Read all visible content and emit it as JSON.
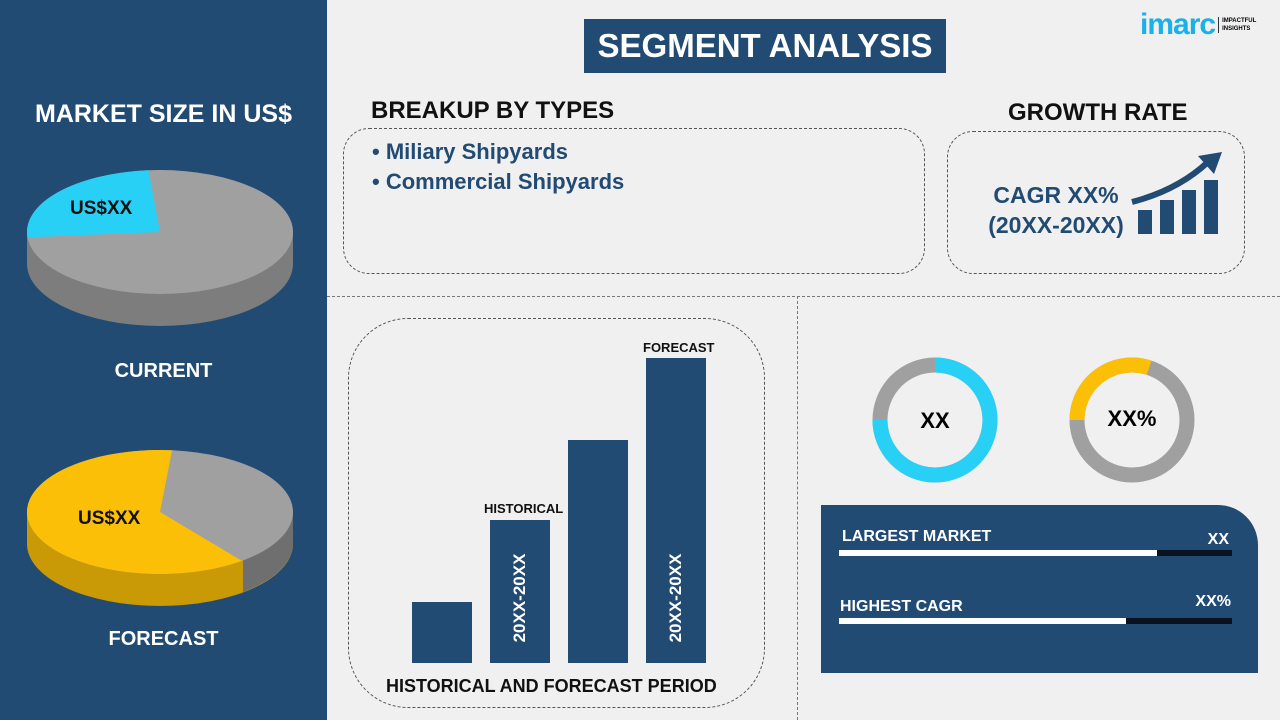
{
  "title": "SEGMENT ANALYSIS",
  "logo": {
    "brand": "imarc",
    "tagline": "IMPACTFUL INSIGHTS"
  },
  "left": {
    "heading": "MARKET SIZE IN US$",
    "current": {
      "label": "CURRENT",
      "value": "US$XX",
      "share": 0.25,
      "color": "#29d0f5"
    },
    "forecast": {
      "label": "FORECAST",
      "value": "US$XX",
      "share": 0.62,
      "color": "#fbbf07"
    },
    "rest_color": "#a0a0a0"
  },
  "breakup": {
    "heading": "BREAKUP BY TYPES",
    "items": [
      "Miliary Shipyards",
      "Commercial Shipyards"
    ]
  },
  "growth": {
    "heading": "GROWTH RATE",
    "line1": "CAGR XX%",
    "line2": "(20XX-20XX)"
  },
  "period": {
    "title": "HISTORICAL AND FORECAST PERIOD",
    "historical_label": "HISTORICAL",
    "forecast_label": "FORECAST",
    "bar_text": "20XX-20XX",
    "relative_heights": [
      0.2,
      0.47,
      0.73,
      1.0
    ]
  },
  "donuts": [
    {
      "label": "XX",
      "fraction": 0.75,
      "color": "#29d0f5"
    },
    {
      "label": "XX%",
      "fraction": 0.3,
      "color": "#fbbf07"
    }
  ],
  "kpi": [
    {
      "label": "LARGEST MARKET",
      "value": "XX",
      "progress": 0.81
    },
    {
      "label": "HIGHEST CAGR",
      "value": "XX%",
      "progress": 0.73
    }
  ]
}
